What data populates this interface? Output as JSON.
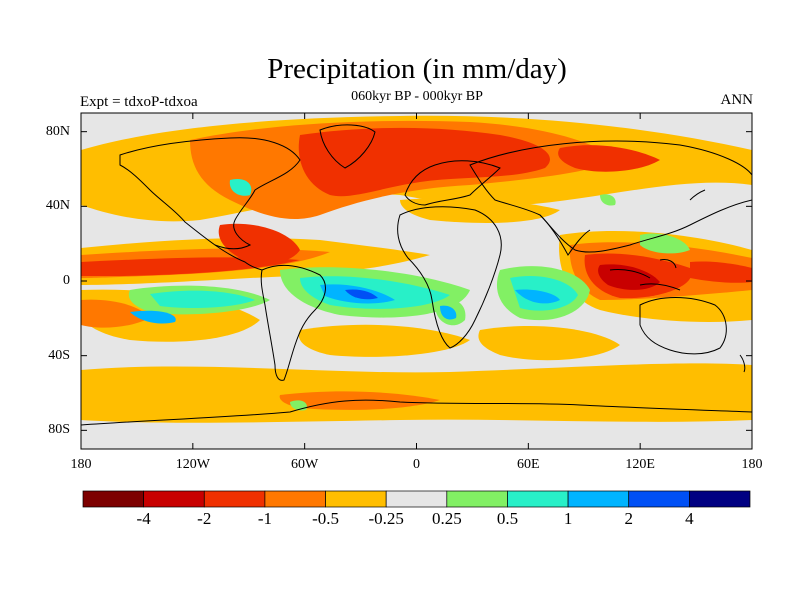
{
  "title": "Precipitation (in mm/day)",
  "subtitle": "060kyr BP - 000kyr BP",
  "experiment_label": "Expt = tdxoP-tdxoa",
  "season_label": "ANN",
  "map": {
    "projection": "cylindrical-equidistant",
    "lon_range": [
      -180,
      180
    ],
    "lat_range": [
      -90,
      90
    ],
    "lat_ticks": [
      {
        "lat": 80,
        "label": "80N"
      },
      {
        "lat": 40,
        "label": "40N"
      },
      {
        "lat": 0,
        "label": "0"
      },
      {
        "lat": -40,
        "label": "40S"
      },
      {
        "lat": -80,
        "label": "80S"
      }
    ],
    "lon_ticks": [
      {
        "lon": -180,
        "label": "180"
      },
      {
        "lon": -120,
        "label": "120W"
      },
      {
        "lon": -60,
        "label": "60W"
      },
      {
        "lon": 0,
        "label": "0"
      },
      {
        "lon": 60,
        "label": "60E"
      },
      {
        "lon": 120,
        "label": "120E"
      },
      {
        "lon": 180,
        "label": "180"
      }
    ],
    "background_color": "#e6e6e6"
  },
  "colorbar": {
    "colors": [
      "#7d0000",
      "#c80000",
      "#f03000",
      "#ff7800",
      "#ffbe00",
      "#e6e6e6",
      "#82f064",
      "#28f0c8",
      "#00b4ff",
      "#0050f5",
      "#000082"
    ],
    "ticks": [
      {
        "label": "-4"
      },
      {
        "label": "-2"
      },
      {
        "label": "-1"
      },
      {
        "label": "-0.5"
      },
      {
        "label": "-0.25"
      },
      {
        "label": "0.25"
      },
      {
        "label": "0.5"
      },
      {
        "label": "1"
      },
      {
        "label": "2"
      },
      {
        "label": "4"
      }
    ]
  }
}
